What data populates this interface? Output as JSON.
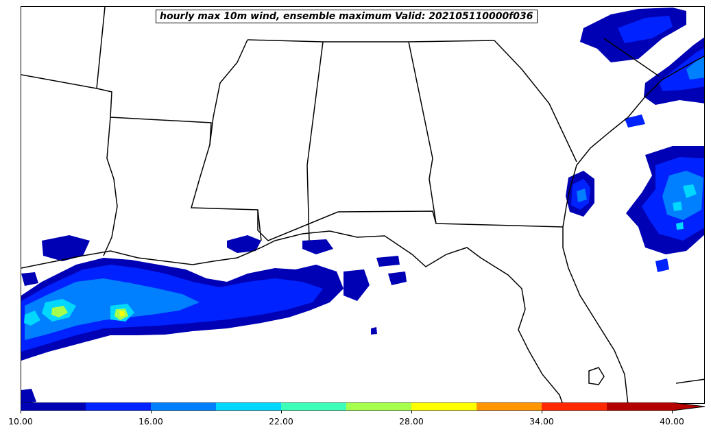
{
  "title": "hourly max 10m wind, ensemble maximum Valid: 202105110000f036",
  "colorbar": {
    "levels": [
      10,
      13,
      16,
      19,
      22,
      25,
      28,
      31,
      34,
      37,
      40
    ],
    "colors": [
      "#0000b4",
      "#0022ff",
      "#0080ff",
      "#00d8ff",
      "#3dffb8",
      "#a6ff4d",
      "#ffff00",
      "#ff9600",
      "#ff2800",
      "#b40000"
    ],
    "extend": "max",
    "tick_labels": [
      "10.00",
      "16.00",
      "22.00",
      "28.00",
      "34.00",
      "40.00"
    ]
  },
  "chart_data": {
    "type": "heatmap",
    "title": "hourly max 10m wind, ensemble maximum Valid: 202105110000f036",
    "color_scale": {
      "min": 10,
      "max": 40,
      "interval": 3,
      "extend": "max"
    }
  }
}
